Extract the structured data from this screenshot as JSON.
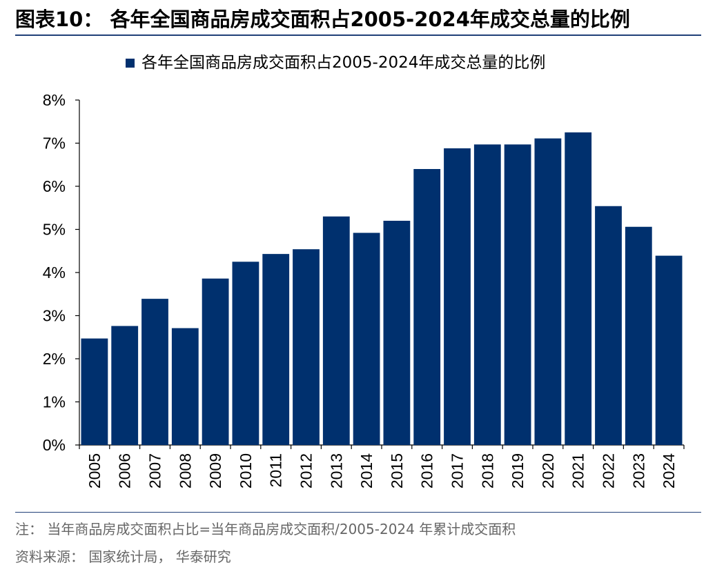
{
  "figure": {
    "title": "图表10： 各年全国商品房成交面积占2005-2024年成交总量的比例",
    "note": "注：  当年商品房成交面积占比=当年商品房成交面积/2005-2024 年累计成交面积",
    "source": "资料来源：  国家统计局，  华泰研究"
  },
  "colors": {
    "bar": "#00306e",
    "accent_rule": "#1f3f77"
  },
  "chart_data": {
    "type": "bar",
    "title": "",
    "xlabel": "",
    "ylabel": "",
    "categories": [
      "2005",
      "2006",
      "2007",
      "2008",
      "2009",
      "2010",
      "2011",
      "2012",
      "2013",
      "2014",
      "2015",
      "2016",
      "2017",
      "2018",
      "2019",
      "2020",
      "2021",
      "2022",
      "2023",
      "2024"
    ],
    "series": [
      {
        "name": "各年全国商品房成交面积占2005-2024年成交总量的比例",
        "values": [
          2.47,
          2.76,
          3.39,
          2.71,
          3.86,
          4.25,
          4.43,
          4.54,
          5.3,
          4.92,
          5.2,
          6.4,
          6.88,
          6.97,
          6.97,
          7.11,
          7.25,
          5.54,
          5.06,
          4.39
        ]
      }
    ],
    "ylim": [
      0,
      8
    ],
    "yticks": [
      0,
      1,
      2,
      3,
      4,
      5,
      6,
      7,
      8
    ],
    "y_tick_suffix": "%",
    "grid": false,
    "legend": "top-center"
  }
}
